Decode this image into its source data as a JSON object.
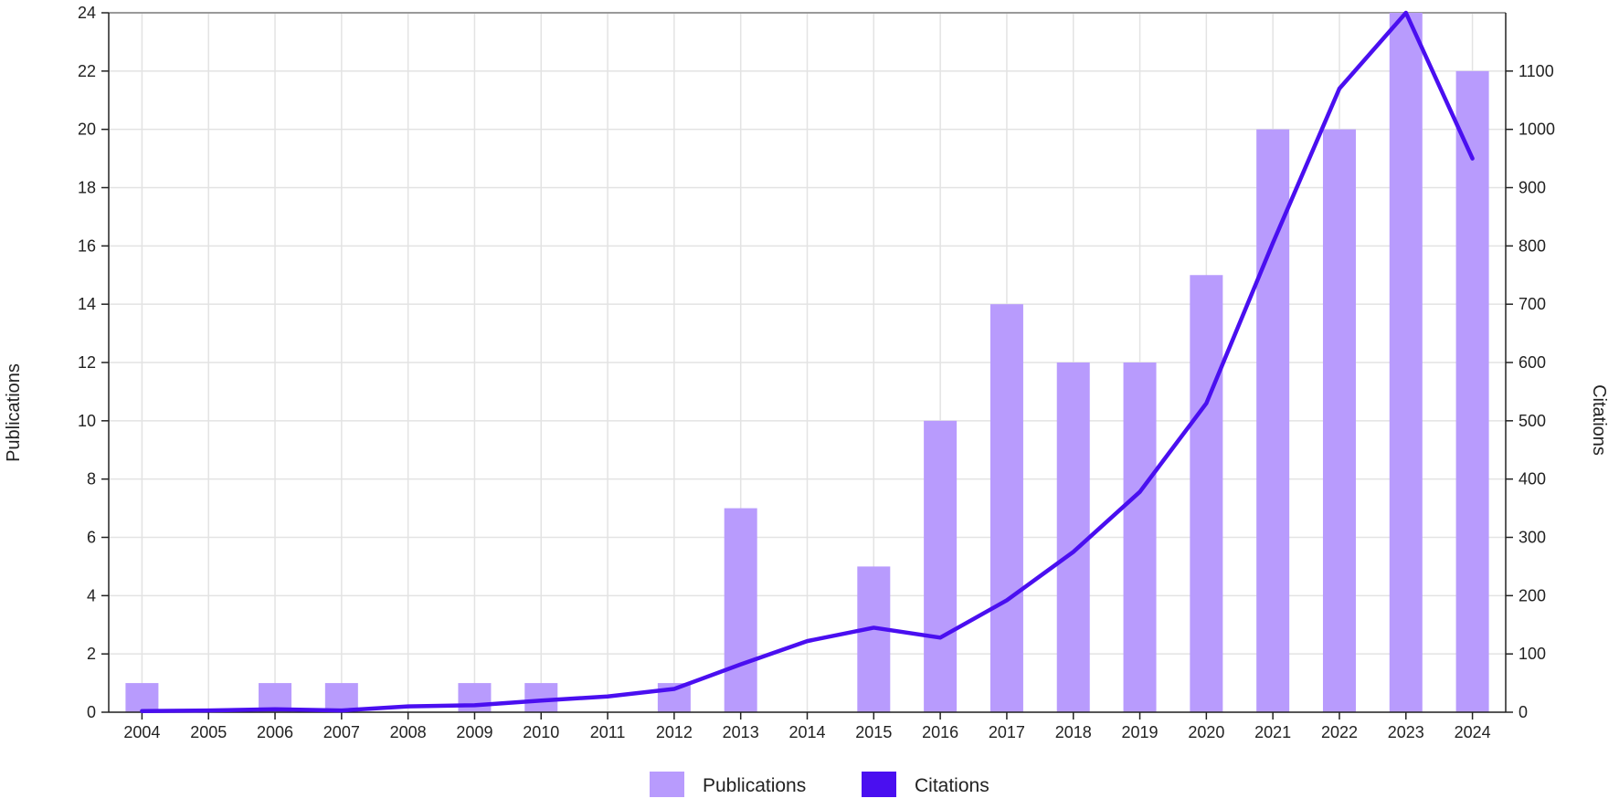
{
  "colors": {
    "publications": "#b89bfd",
    "citations": "#4a0ff0",
    "grid": "#e3e3e3",
    "axis": "#222222"
  },
  "chart_data": {
    "type": "bar",
    "categories": [
      "2004",
      "2005",
      "2006",
      "2007",
      "2008",
      "2009",
      "2010",
      "2011",
      "2012",
      "2013",
      "2014",
      "2015",
      "2016",
      "2017",
      "2018",
      "2019",
      "2020",
      "2021",
      "2022",
      "2023",
      "2024"
    ],
    "series": [
      {
        "name": "Publications",
        "type": "bar",
        "axis": "left",
        "values": [
          1,
          0,
          1,
          1,
          0,
          1,
          1,
          0,
          1,
          7,
          0,
          5,
          10,
          14,
          12,
          12,
          15,
          20,
          20,
          24,
          22
        ]
      },
      {
        "name": "Citations",
        "type": "line",
        "axis": "right",
        "values": [
          2,
          3,
          5,
          3,
          10,
          12,
          20,
          27,
          40,
          82,
          122,
          145,
          128,
          192,
          275,
          378,
          530,
          805,
          1070,
          1200,
          950
        ]
      }
    ],
    "y_left": {
      "label": "Publications",
      "range": [
        0,
        24
      ],
      "ticks": [
        "0",
        "2",
        "4",
        "6",
        "8",
        "10",
        "12",
        "14",
        "16",
        "18",
        "20",
        "22",
        "24"
      ]
    },
    "y_right": {
      "label": "Citations",
      "range": [
        0,
        1200
      ],
      "ticks": [
        "0",
        "100",
        "200",
        "300",
        "400",
        "500",
        "600",
        "700",
        "800",
        "900",
        "1000",
        "1100"
      ]
    },
    "grid": true,
    "legend": {
      "position": "bottom-center",
      "items": [
        "Publications",
        "Citations"
      ]
    }
  }
}
